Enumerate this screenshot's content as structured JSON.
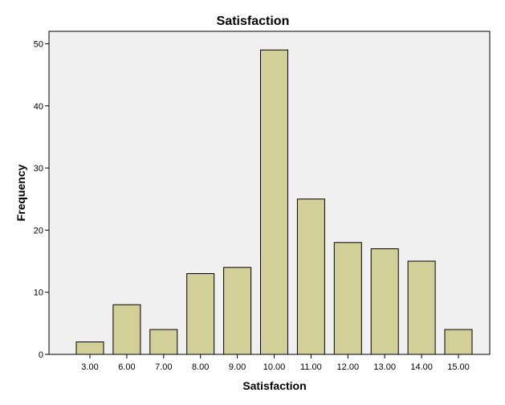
{
  "chart_data": {
    "type": "bar",
    "title": "Satisfaction",
    "xlabel": "Satisfaction",
    "ylabel": "Frequency",
    "categories": [
      "3.00",
      "6.00",
      "7.00",
      "8.00",
      "9.00",
      "10.00",
      "11.00",
      "12.00",
      "13.00",
      "14.00",
      "15.00"
    ],
    "values": [
      2,
      8,
      4,
      13,
      14,
      49,
      25,
      18,
      17,
      15,
      4
    ],
    "ylim": [
      0,
      52
    ],
    "yticks": [
      "0",
      "10",
      "20",
      "30",
      "40",
      "50"
    ],
    "grid": false,
    "bar_color": "#d3cf99",
    "bar_edge_color": "#000000",
    "plot_background": "#f0f0f0"
  }
}
